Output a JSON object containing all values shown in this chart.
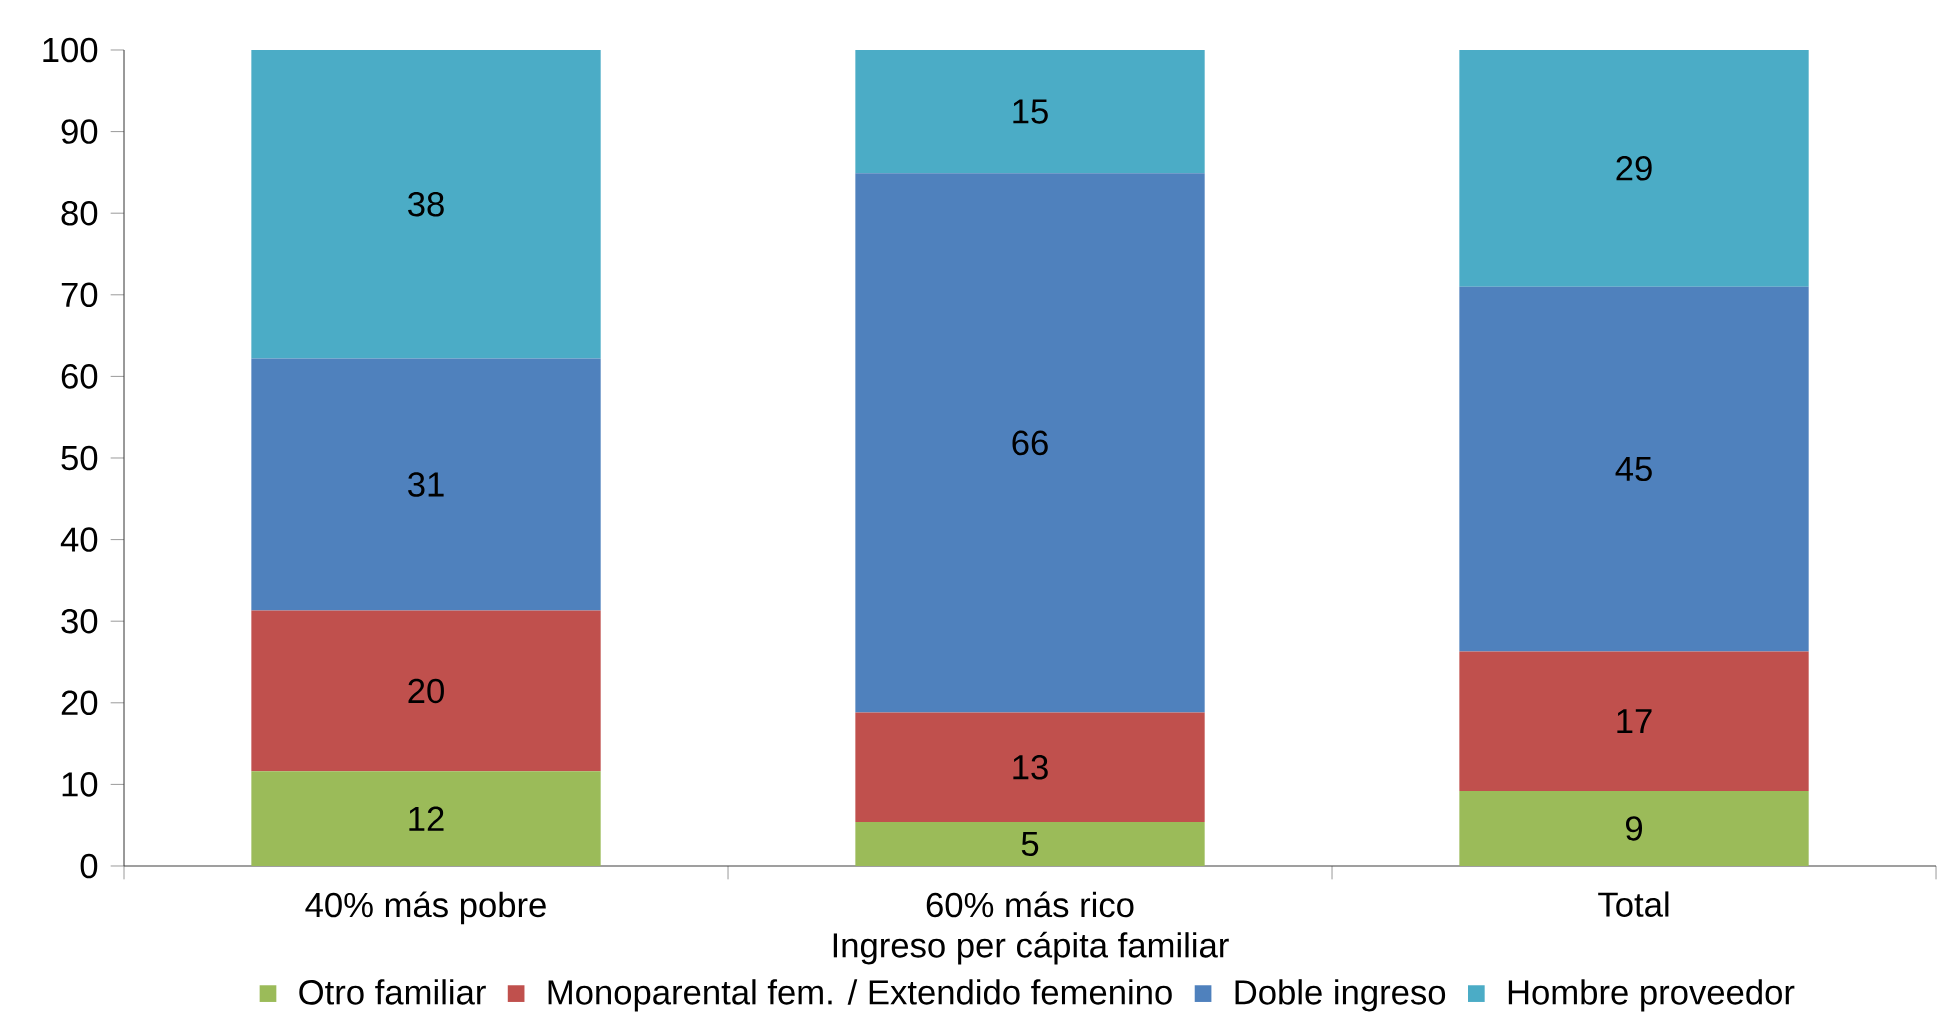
{
  "chart_data": {
    "type": "bar",
    "stacked": true,
    "categories": [
      "40% más pobre",
      "60% más rico",
      "Total"
    ],
    "xlabel": "Ingreso per cápita familiar",
    "series": [
      {
        "name": "Otro familiar",
        "color": "#9bbb59",
        "values": [
          11.6,
          5.4,
          9.2
        ],
        "value_labels": [
          "12",
          "5",
          "9"
        ]
      },
      {
        "name": "Monoparental fem. / Extendido femenino",
        "color": "#c0504d",
        "values": [
          19.7,
          13.4,
          17.1
        ],
        "value_labels": [
          "20",
          "13",
          "17"
        ]
      },
      {
        "name": "Doble ingreso",
        "color": "#4f81bd",
        "values": [
          30.9,
          66.1,
          44.7
        ],
        "value_labels": [
          "31",
          "66",
          "45"
        ]
      },
      {
        "name": "Hombre proveedor",
        "color": "#4bacc6",
        "values": [
          37.8,
          15.1,
          29.0
        ],
        "value_labels": [
          "38",
          "15",
          "29"
        ]
      }
    ],
    "ylim": [
      0,
      100
    ],
    "yticks": [
      0,
      10,
      20,
      30,
      40,
      50,
      60,
      70,
      80,
      90,
      100
    ],
    "grid": false,
    "legend": "bottom"
  }
}
